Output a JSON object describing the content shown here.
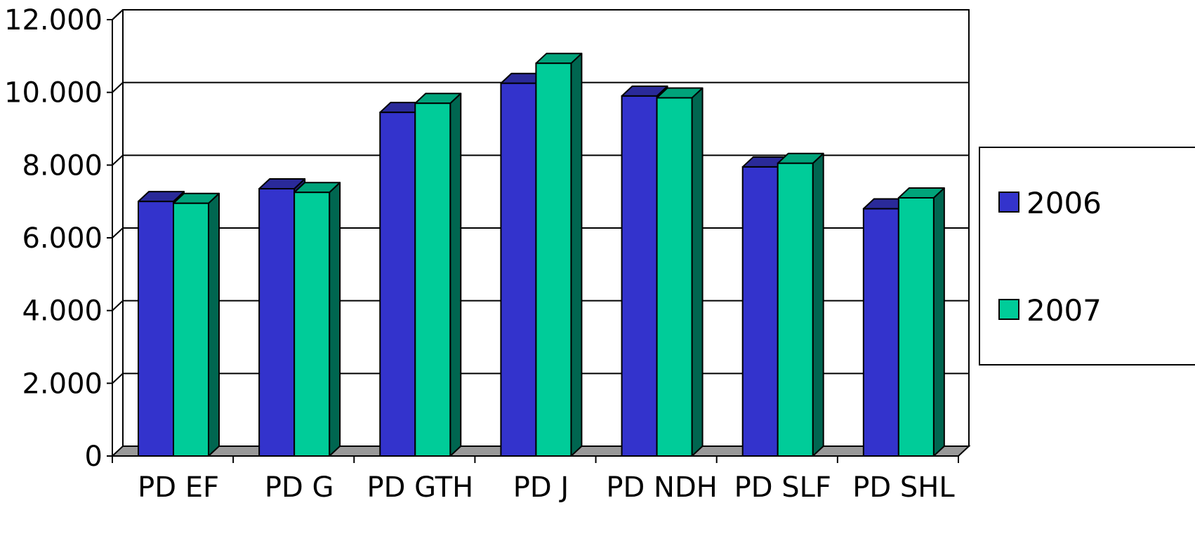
{
  "chart_data": {
    "type": "bar",
    "style": "3d-clustered-column",
    "categories": [
      "PD EF",
      "PD G",
      "PD GTH",
      "PD J",
      "PD NDH",
      "PD SLF",
      "PD SHL"
    ],
    "series": [
      {
        "name": "2006",
        "values": [
          7000,
          7350,
          9450,
          10250,
          9900,
          7950,
          6800
        ]
      },
      {
        "name": "2007",
        "values": [
          6950,
          7250,
          9700,
          10800,
          9850,
          8050,
          7100
        ]
      }
    ],
    "ylim": [
      0,
      12000
    ],
    "yticks": [
      0,
      2000,
      4000,
      6000,
      8000,
      10000,
      12000
    ],
    "ytick_labels": [
      "0",
      "2.000",
      "4.000",
      "6.000",
      "8.000",
      "10.000",
      "12.000"
    ],
    "grid": true,
    "legend_position": "right",
    "colors": {
      "2006": {
        "front": "#3333cc",
        "top": "#2a2a99",
        "side": "#1f1f73"
      },
      "2007": {
        "front": "#00cc99",
        "top": "#00a37a",
        "side": "#006650"
      },
      "floor": "#999999"
    }
  }
}
